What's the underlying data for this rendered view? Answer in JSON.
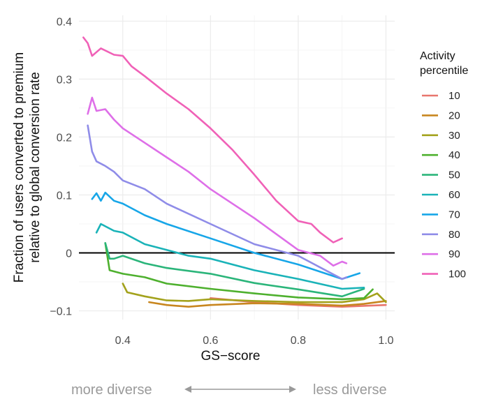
{
  "chart_data": {
    "type": "line",
    "title": "",
    "xlabel": "GS−score",
    "ylabel_lines": [
      "Fraction of users converted to premium",
      "relative to global conversion rate"
    ],
    "xlim": [
      0.3,
      1.02
    ],
    "ylim": [
      -0.115,
      0.41
    ],
    "x_ticks": [
      0.4,
      0.6,
      0.8,
      1.0
    ],
    "x_tick_labels": [
      "0.4",
      "0.6",
      "0.8",
      "1.0"
    ],
    "y_ticks": [
      -0.1,
      0,
      0.1,
      0.2,
      0.3,
      0.4
    ],
    "y_tick_labels": [
      "−0.1",
      "0",
      "0.1",
      "0.2",
      "0.3",
      "0.4"
    ],
    "reference_line_y": 0,
    "grid": true,
    "legend": {
      "title_lines": [
        "Activity",
        "percentile"
      ],
      "position": "right"
    },
    "series": [
      {
        "name": "10",
        "color": "#e8766d",
        "x": [
          0.6,
          0.7,
          0.8,
          0.9,
          1.0
        ],
        "y": [
          -0.078,
          -0.085,
          -0.09,
          -0.093,
          -0.09
        ]
      },
      {
        "name": "20",
        "color": "#c8861f",
        "x": [
          0.46,
          0.5,
          0.55,
          0.6,
          0.7,
          0.8,
          0.9,
          0.95,
          1.0
        ],
        "y": [
          -0.085,
          -0.09,
          -0.093,
          -0.09,
          -0.087,
          -0.088,
          -0.091,
          -0.088,
          -0.083
        ]
      },
      {
        "name": "30",
        "color": "#a3a21c",
        "x": [
          0.4,
          0.41,
          0.45,
          0.5,
          0.55,
          0.6,
          0.7,
          0.8,
          0.9,
          0.95,
          0.98,
          1.0
        ],
        "y": [
          -0.053,
          -0.068,
          -0.075,
          -0.082,
          -0.083,
          -0.08,
          -0.083,
          -0.085,
          -0.085,
          -0.08,
          -0.07,
          -0.085
        ]
      },
      {
        "name": "40",
        "color": "#4eb02e",
        "x": [
          0.36,
          0.37,
          0.4,
          0.45,
          0.5,
          0.6,
          0.7,
          0.8,
          0.9,
          0.95,
          0.97
        ],
        "y": [
          0.017,
          -0.03,
          -0.036,
          -0.042,
          -0.053,
          -0.062,
          -0.07,
          -0.077,
          -0.08,
          -0.078,
          -0.063
        ]
      },
      {
        "name": "50",
        "color": "#2bb57a",
        "x": [
          0.36,
          0.37,
          0.38,
          0.4,
          0.45,
          0.5,
          0.6,
          0.7,
          0.8,
          0.9,
          0.95
        ],
        "y": [
          0.017,
          -0.01,
          -0.01,
          -0.005,
          -0.018,
          -0.026,
          -0.036,
          -0.052,
          -0.063,
          -0.075,
          -0.062
        ]
      },
      {
        "name": "60",
        "color": "#1ab3b8",
        "x": [
          0.34,
          0.35,
          0.38,
          0.4,
          0.45,
          0.5,
          0.55,
          0.6,
          0.7,
          0.8,
          0.9,
          0.95
        ],
        "y": [
          0.035,
          0.05,
          0.038,
          0.035,
          0.015,
          0.005,
          -0.005,
          -0.01,
          -0.03,
          -0.045,
          -0.062,
          -0.06
        ]
      },
      {
        "name": "70",
        "color": "#17a6e8",
        "x": [
          0.33,
          0.34,
          0.35,
          0.36,
          0.38,
          0.4,
          0.45,
          0.5,
          0.6,
          0.7,
          0.8,
          0.9,
          0.94
        ],
        "y": [
          0.093,
          0.103,
          0.09,
          0.104,
          0.09,
          0.085,
          0.065,
          0.05,
          0.025,
          0.0,
          -0.02,
          -0.045,
          -0.035
        ]
      },
      {
        "name": "80",
        "color": "#8f8ce8",
        "x": [
          0.32,
          0.33,
          0.34,
          0.36,
          0.38,
          0.4,
          0.45,
          0.5,
          0.6,
          0.7,
          0.8,
          0.85,
          0.9,
          0.91
        ],
        "y": [
          0.22,
          0.175,
          0.158,
          0.15,
          0.14,
          0.125,
          0.11,
          0.085,
          0.05,
          0.015,
          -0.005,
          -0.025,
          -0.045,
          -0.042
        ]
      },
      {
        "name": "90",
        "color": "#de6fe8",
        "x": [
          0.32,
          0.33,
          0.34,
          0.36,
          0.38,
          0.4,
          0.45,
          0.5,
          0.55,
          0.6,
          0.7,
          0.8,
          0.85,
          0.88,
          0.9,
          0.91
        ],
        "y": [
          0.24,
          0.268,
          0.245,
          0.248,
          0.23,
          0.215,
          0.19,
          0.165,
          0.14,
          0.11,
          0.06,
          0.005,
          -0.005,
          -0.022,
          -0.015,
          -0.018
        ]
      },
      {
        "name": "100",
        "color": "#f061b7",
        "x": [
          0.31,
          0.32,
          0.33,
          0.35,
          0.38,
          0.4,
          0.42,
          0.45,
          0.5,
          0.55,
          0.6,
          0.65,
          0.7,
          0.75,
          0.8,
          0.83,
          0.85,
          0.88,
          0.9
        ],
        "y": [
          0.372,
          0.362,
          0.34,
          0.353,
          0.342,
          0.34,
          0.322,
          0.305,
          0.275,
          0.248,
          0.215,
          0.178,
          0.135,
          0.09,
          0.055,
          0.05,
          0.035,
          0.018,
          0.025
        ]
      }
    ]
  },
  "diversity_axis": {
    "left_label": "more diverse",
    "right_label": "less diverse",
    "arrow_color": "#9a9a9a"
  }
}
